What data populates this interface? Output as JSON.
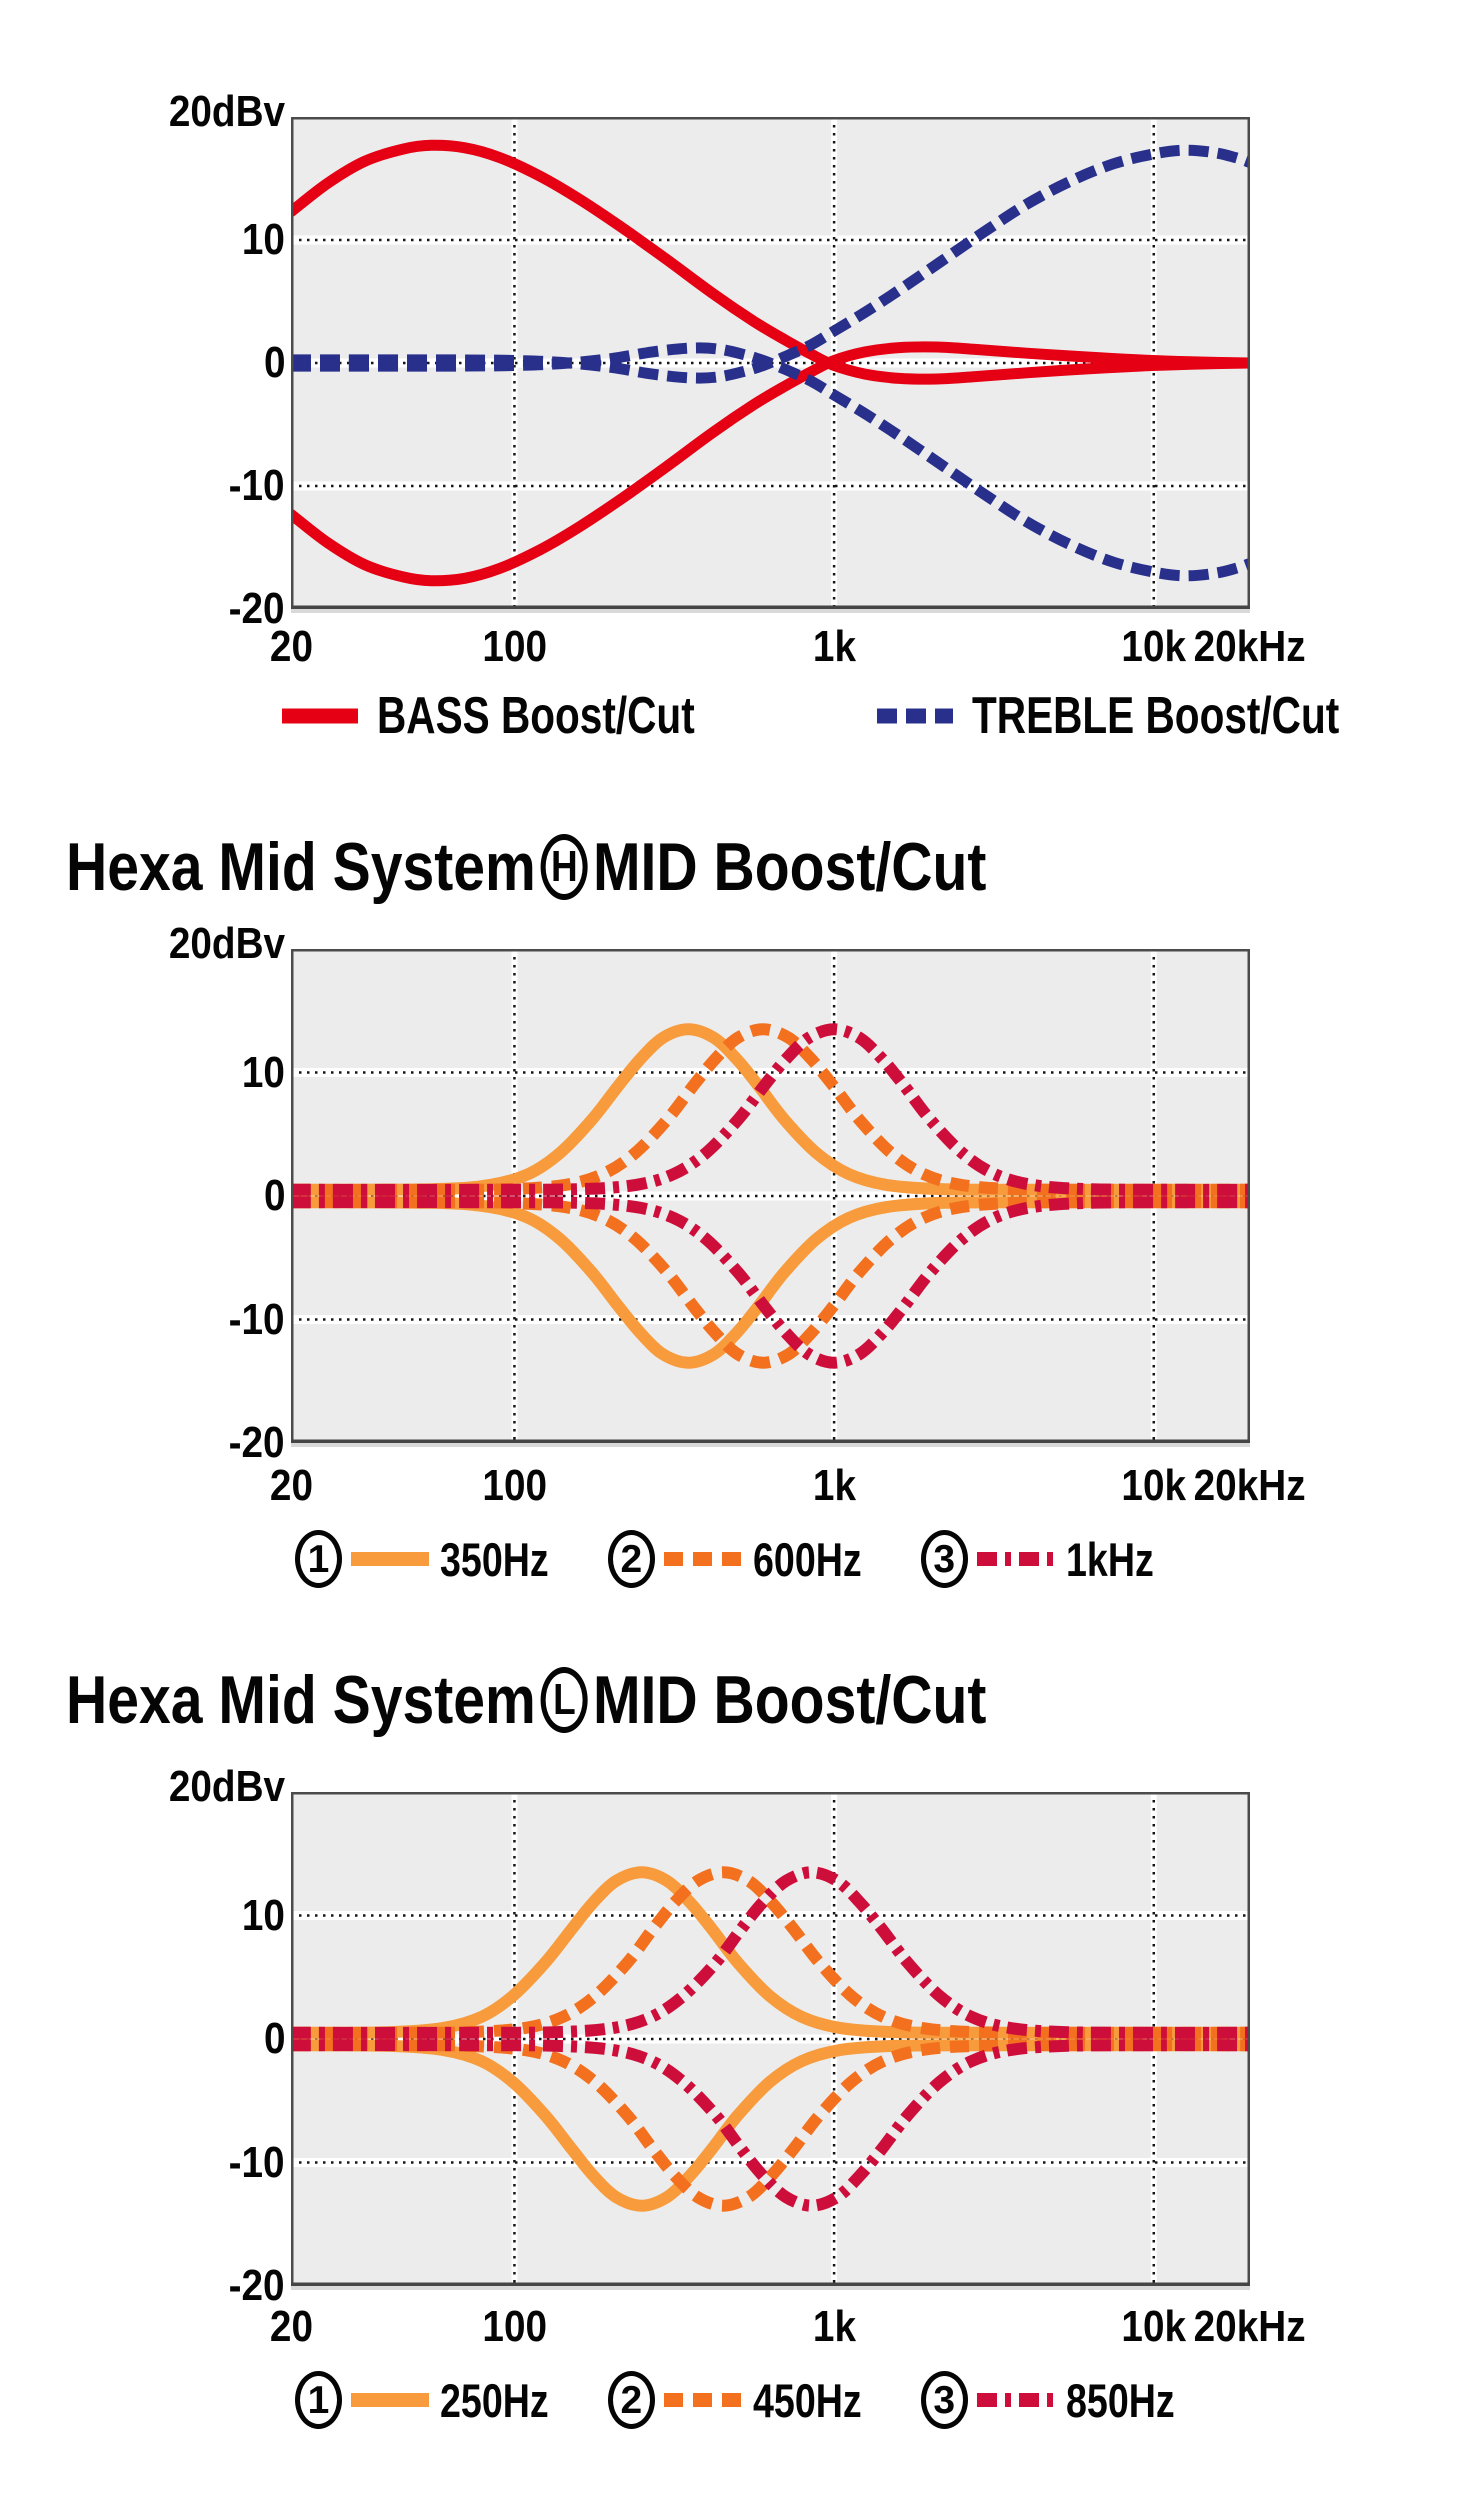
{
  "figure": {
    "bg": "#ffffff",
    "plot_bg": "#ececec",
    "grid_color": "#161616",
    "halo_color": "#ffffff",
    "border_color": "#4b4b4b",
    "text_color": "#050505"
  },
  "chart_data": [
    {
      "type": "line",
      "name": "bass-treble-boost-cut",
      "title": null,
      "unit_label": "20dBv",
      "xlabel": "",
      "ylabel": "dBv",
      "ylim": [
        -20,
        20
      ],
      "xlim_hz": [
        20,
        20000
      ],
      "grid": true,
      "yticks": [
        {
          "db": 10,
          "label": "10"
        },
        {
          "db": 0,
          "label": "0"
        },
        {
          "db": -10,
          "label": "-10"
        },
        {
          "db": -20,
          "label": "-20"
        }
      ],
      "xticks": [
        {
          "f": 20,
          "label": "20"
        },
        {
          "f": 100,
          "label": "100"
        },
        {
          "f": 1000,
          "label": "1k"
        },
        {
          "f": 10000,
          "label": "10k"
        },
        {
          "f": 20000,
          "label": "20kHz"
        }
      ],
      "grid_freqs": [
        100,
        1000,
        10000
      ],
      "grid_dbs": [
        10,
        0,
        -10
      ],
      "series": [
        {
          "name": "BASS Boost/Cut",
          "color": "#E60013",
          "stroke_width": 11,
          "dash": null,
          "mirrored": true,
          "points": [
            [
              20,
              12.3
            ],
            [
              26,
              14.6
            ],
            [
              34,
              16.4
            ],
            [
              45,
              17.4
            ],
            [
              55,
              17.7
            ],
            [
              70,
              17.5
            ],
            [
              90,
              16.7
            ],
            [
              120,
              15.2
            ],
            [
              160,
              13.3
            ],
            [
              220,
              10.9
            ],
            [
              300,
              8.4
            ],
            [
              420,
              5.6
            ],
            [
              560,
              3.4
            ],
            [
              700,
              1.9
            ],
            [
              850,
              0.7
            ],
            [
              1000,
              -0.2
            ],
            [
              1250,
              -0.9
            ],
            [
              1600,
              -1.25
            ],
            [
              2100,
              -1.3
            ],
            [
              2800,
              -1.1
            ],
            [
              4000,
              -0.8
            ],
            [
              6000,
              -0.5
            ],
            [
              9000,
              -0.25
            ],
            [
              13000,
              -0.1
            ],
            [
              20000,
              0
            ]
          ]
        },
        {
          "name": "TREBLE Boost/Cut",
          "color": "#28308C",
          "stroke_width": 11,
          "dash": [
            20,
            9
          ],
          "mirrored": true,
          "points": [
            [
              20,
              0.25
            ],
            [
              60,
              0.25
            ],
            [
              100,
              0.2
            ],
            [
              140,
              0.05
            ],
            [
              200,
              -0.35
            ],
            [
              270,
              -0.9
            ],
            [
              350,
              -1.2
            ],
            [
              430,
              -1.15
            ],
            [
              520,
              -0.7
            ],
            [
              600,
              -0.2
            ],
            [
              700,
              0.5
            ],
            [
              850,
              1.5
            ],
            [
              1000,
              2.6
            ],
            [
              1300,
              4.4
            ],
            [
              1700,
              6.4
            ],
            [
              2200,
              8.4
            ],
            [
              3000,
              10.8
            ],
            [
              4000,
              12.9
            ],
            [
              5500,
              14.8
            ],
            [
              7500,
              16.2
            ],
            [
              10000,
              17.0
            ],
            [
              12500,
              17.3
            ],
            [
              15500,
              17.1
            ],
            [
              18000,
              16.7
            ],
            [
              20000,
              16.3
            ]
          ]
        }
      ],
      "legend": [
        {
          "series": 0,
          "label": "BASS Boost/Cut"
        },
        {
          "series": 1,
          "label": "TREBLE Boost/Cut"
        }
      ]
    },
    {
      "type": "line",
      "name": "hexa-mid-system-h",
      "title": {
        "prefix": "Hexa Mid System",
        "letter": "H",
        "suffix": "MID Boost/Cut"
      },
      "unit_label": "20dBv",
      "xlabel": "",
      "ylabel": "dBv",
      "ylim": [
        -20,
        20
      ],
      "xlim_hz": [
        20,
        20000
      ],
      "grid": true,
      "yticks": [
        {
          "db": 10,
          "label": "10"
        },
        {
          "db": 0,
          "label": "0"
        },
        {
          "db": -10,
          "label": "-10"
        },
        {
          "db": -20,
          "label": "-20"
        }
      ],
      "xticks": [
        {
          "f": 20,
          "label": "20"
        },
        {
          "f": 100,
          "label": "100"
        },
        {
          "f": 1000,
          "label": "1k"
        },
        {
          "f": 10000,
          "label": "10k"
        },
        {
          "f": 20000,
          "label": "20kHz"
        }
      ],
      "grid_freqs": [
        100,
        1000,
        10000
      ],
      "grid_dbs": [
        10,
        0,
        -10
      ],
      "series": [
        {
          "name": "350Hz",
          "color": "#F79B3C",
          "stroke_width": 12,
          "dash": null,
          "mirrored": true,
          "points": [
            [
              20,
              0.5
            ],
            [
              55,
              0.55
            ],
            [
              84,
              0.9
            ],
            [
              111,
              1.8
            ],
            [
              139,
              3.5
            ],
            [
              175,
              6.2
            ],
            [
              211,
              8.9
            ],
            [
              248,
              11.1
            ],
            [
              291,
              12.8
            ],
            [
              350,
              13.5
            ],
            [
              421,
              12.8
            ],
            [
              495,
              11.1
            ],
            [
              581,
              8.9
            ],
            [
              698,
              6.2
            ],
            [
              879,
              3.5
            ],
            [
              1107,
              1.8
            ],
            [
              1459,
              0.9
            ],
            [
              2208,
              0.55
            ],
            [
              4400,
              0.5
            ],
            [
              9000,
              0.5
            ],
            [
              20000,
              0.5
            ]
          ]
        },
        {
          "name": "600Hz",
          "color": "#F2701E",
          "stroke_width": 12,
          "dash": [
            19,
            10
          ],
          "mirrored": true,
          "points": [
            [
              20,
              0.5
            ],
            [
              60,
              0.5
            ],
            [
              95,
              0.55
            ],
            [
              144,
              0.9
            ],
            [
              190,
              1.8
            ],
            [
              239,
              3.5
            ],
            [
              301,
              6.2
            ],
            [
              362,
              8.9
            ],
            [
              425,
              11.1
            ],
            [
              499,
              12.8
            ],
            [
              600,
              13.5
            ],
            [
              722,
              12.8
            ],
            [
              847,
              11.1
            ],
            [
              996,
              8.9
            ],
            [
              1197,
              6.2
            ],
            [
              1507,
              3.5
            ],
            [
              1897,
              1.8
            ],
            [
              2501,
              0.9
            ],
            [
              3786,
              0.55
            ],
            [
              7500,
              0.5
            ],
            [
              20000,
              0.5
            ]
          ]
        },
        {
          "name": "1kHz",
          "color": "#CE0E3A",
          "stroke_width": 12,
          "dash": [
            20,
            8,
            6,
            8
          ],
          "mirrored": true,
          "points": [
            [
              20,
              0.5
            ],
            [
              80,
              0.5
            ],
            [
              158,
              0.55
            ],
            [
              240,
              0.9
            ],
            [
              316,
              1.8
            ],
            [
              398,
              3.5
            ],
            [
              501,
              6.2
            ],
            [
              603,
              8.9
            ],
            [
              708,
              11.1
            ],
            [
              832,
              12.8
            ],
            [
              1000,
              13.5
            ],
            [
              1202,
              12.8
            ],
            [
              1413,
              11.1
            ],
            [
              1660,
              8.9
            ],
            [
              1995,
              6.2
            ],
            [
              2512,
              3.5
            ],
            [
              3162,
              1.8
            ],
            [
              4169,
              0.9
            ],
            [
              6310,
              0.55
            ],
            [
              12500,
              0.5
            ],
            [
              20000,
              0.5
            ]
          ]
        }
      ],
      "legend": [
        {
          "num": "1",
          "series": 0,
          "label": "350Hz"
        },
        {
          "num": "2",
          "series": 1,
          "label": "600Hz"
        },
        {
          "num": "3",
          "series": 2,
          "label": "1kHz"
        }
      ]
    },
    {
      "type": "line",
      "name": "hexa-mid-system-l",
      "title": {
        "prefix": "Hexa Mid System",
        "letter": "L",
        "suffix": "MID Boost/Cut"
      },
      "unit_label": "20dBv",
      "xlabel": "",
      "ylabel": "dBv",
      "ylim": [
        -20,
        20
      ],
      "xlim_hz": [
        20,
        20000
      ],
      "grid": true,
      "yticks": [
        {
          "db": 10,
          "label": "10"
        },
        {
          "db": 0,
          "label": "0"
        },
        {
          "db": -10,
          "label": "-10"
        },
        {
          "db": -20,
          "label": "-20"
        }
      ],
      "xticks": [
        {
          "f": 20,
          "label": "20"
        },
        {
          "f": 100,
          "label": "100"
        },
        {
          "f": 1000,
          "label": "1k"
        },
        {
          "f": 10000,
          "label": "10k"
        },
        {
          "f": 20000,
          "label": "20kHz"
        }
      ],
      "grid_freqs": [
        100,
        1000,
        10000
      ],
      "grid_dbs": [
        10,
        0,
        -10
      ],
      "series": [
        {
          "name": "250Hz",
          "color": "#F79B3C",
          "stroke_width": 12,
          "dash": null,
          "mirrored": true,
          "points": [
            [
              20,
              0.5
            ],
            [
              40,
              0.55
            ],
            [
              60,
              0.9
            ],
            [
              79,
              1.8
            ],
            [
              99,
              3.5
            ],
            [
              125,
              6.2
            ],
            [
              151,
              8.9
            ],
            [
              177,
              11.1
            ],
            [
              208,
              12.8
            ],
            [
              250,
              13.5
            ],
            [
              300,
              12.8
            ],
            [
              353,
              11.1
            ],
            [
              415,
              8.9
            ],
            [
              499,
              6.2
            ],
            [
              628,
              3.5
            ],
            [
              791,
              1.8
            ],
            [
              1043,
              0.9
            ],
            [
              1578,
              0.55
            ],
            [
              3200,
              0.5
            ],
            [
              9000,
              0.5
            ],
            [
              20000,
              0.5
            ]
          ]
        },
        {
          "name": "450Hz",
          "color": "#F2701E",
          "stroke_width": 12,
          "dash": [
            19,
            10
          ],
          "mirrored": true,
          "points": [
            [
              20,
              0.5
            ],
            [
              45,
              0.5
            ],
            [
              71,
              0.55
            ],
            [
              108,
              0.9
            ],
            [
              142,
              1.8
            ],
            [
              179,
              3.5
            ],
            [
              226,
              6.2
            ],
            [
              271,
              8.9
            ],
            [
              318,
              11.1
            ],
            [
              374,
              12.8
            ],
            [
              450,
              13.5
            ],
            [
              541,
              12.8
            ],
            [
              635,
              11.1
            ],
            [
              747,
              8.9
            ],
            [
              898,
              6.2
            ],
            [
              1130,
              3.5
            ],
            [
              1423,
              1.8
            ],
            [
              1877,
              0.9
            ],
            [
              2840,
              0.55
            ],
            [
              5700,
              0.5
            ],
            [
              20000,
              0.5
            ]
          ]
        },
        {
          "name": "850Hz",
          "color": "#CE0E3A",
          "stroke_width": 12,
          "dash": [
            20,
            8,
            6,
            8
          ],
          "mirrored": true,
          "points": [
            [
              20,
              0.5
            ],
            [
              70,
              0.5
            ],
            [
              134,
              0.55
            ],
            [
              204,
              0.9
            ],
            [
              269,
              1.8
            ],
            [
              338,
              3.5
            ],
            [
              427,
              6.2
            ],
            [
              512,
              8.9
            ],
            [
              600,
              11.1
            ],
            [
              707,
              12.8
            ],
            [
              850,
              13.5
            ],
            [
              1022,
              12.8
            ],
            [
              1200,
              11.1
            ],
            [
              1411,
              8.9
            ],
            [
              1696,
              6.2
            ],
            [
              2135,
              3.5
            ],
            [
              2688,
              1.8
            ],
            [
              3545,
              0.9
            ],
            [
              5365,
              0.55
            ],
            [
              10700,
              0.5
            ],
            [
              20000,
              0.5
            ]
          ]
        }
      ],
      "legend": [
        {
          "num": "1",
          "series": 0,
          "label": "250Hz"
        },
        {
          "num": "2",
          "series": 1,
          "label": "450Hz"
        },
        {
          "num": "3",
          "series": 2,
          "label": "850Hz"
        }
      ]
    }
  ]
}
